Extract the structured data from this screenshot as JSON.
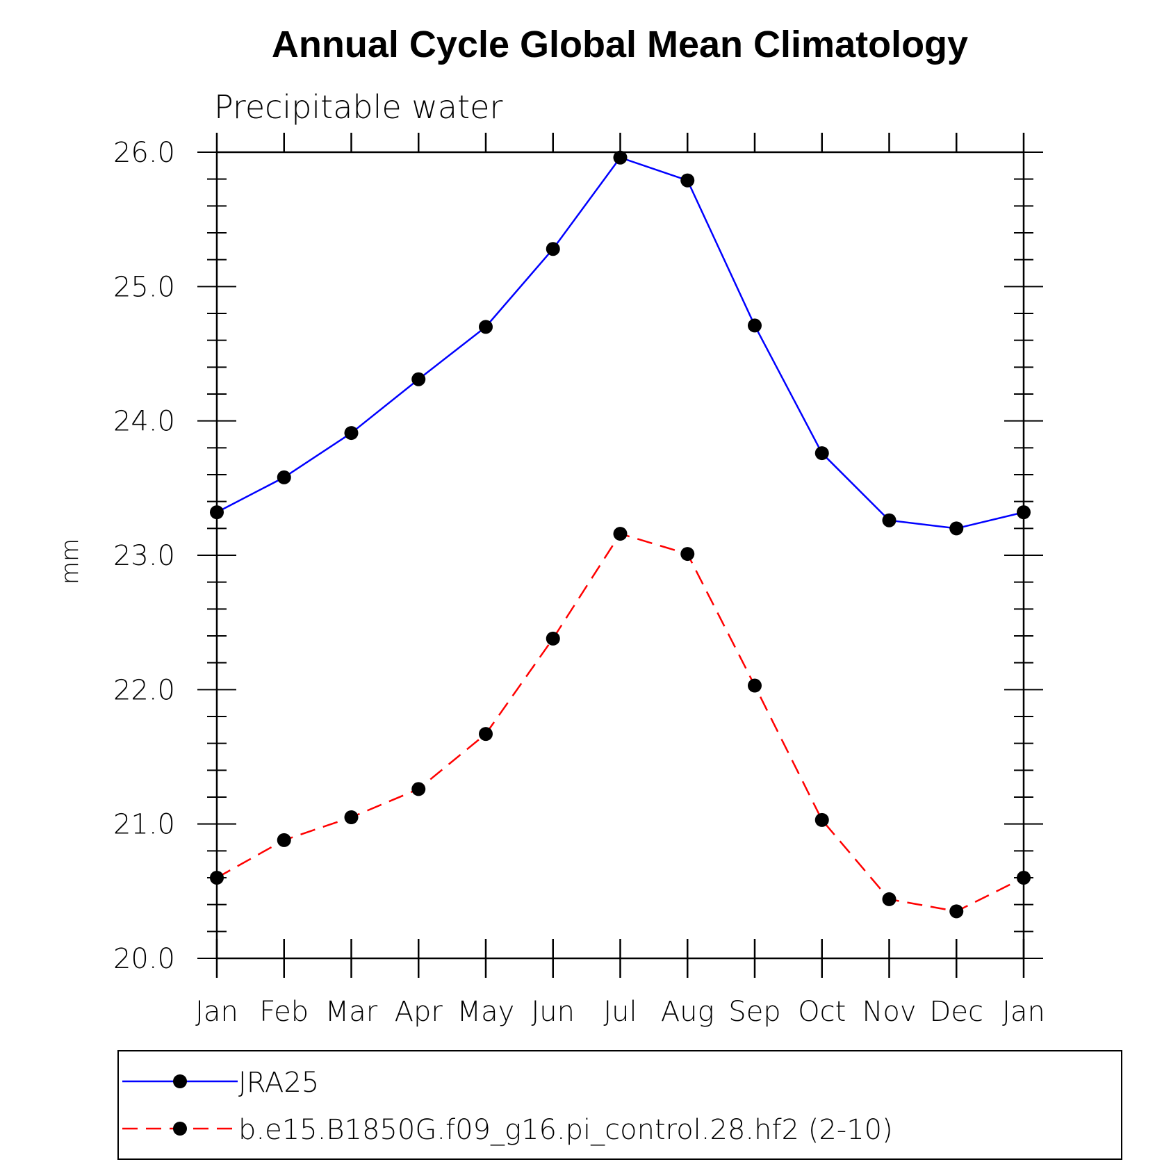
{
  "chart_data": {
    "type": "line",
    "title": "Annual Cycle Global Mean Climatology",
    "subtitle": "Precipitable water",
    "xlabel": "",
    "ylabel": "mm",
    "categories": [
      "Jan",
      "Feb",
      "Mar",
      "Apr",
      "May",
      "Jun",
      "Jul",
      "Aug",
      "Sep",
      "Oct",
      "Nov",
      "Dec",
      "Jan"
    ],
    "ylim": [
      20.0,
      26.0
    ],
    "yticks": [
      "20.0",
      "21.0",
      "22.0",
      "23.0",
      "24.0",
      "25.0",
      "26.0"
    ],
    "grid": false,
    "legend_position": "bottom",
    "series": [
      {
        "name": "JRA25",
        "color": "#0000ff",
        "line_style": "solid",
        "marker": "filled-circle",
        "values": [
          23.32,
          23.58,
          23.91,
          24.31,
          24.7,
          25.28,
          25.96,
          25.79,
          24.71,
          23.76,
          23.26,
          23.2,
          23.32
        ]
      },
      {
        "name": "b.e15.B1850G.f09_g16.pi_control.28.hf2 (2-10)",
        "color": "#ff0000",
        "line_style": "dashed",
        "marker": "filled-circle",
        "values": [
          20.6,
          20.88,
          21.05,
          21.26,
          21.67,
          22.38,
          23.16,
          23.01,
          22.03,
          21.03,
          20.44,
          20.35,
          20.6
        ]
      }
    ]
  }
}
